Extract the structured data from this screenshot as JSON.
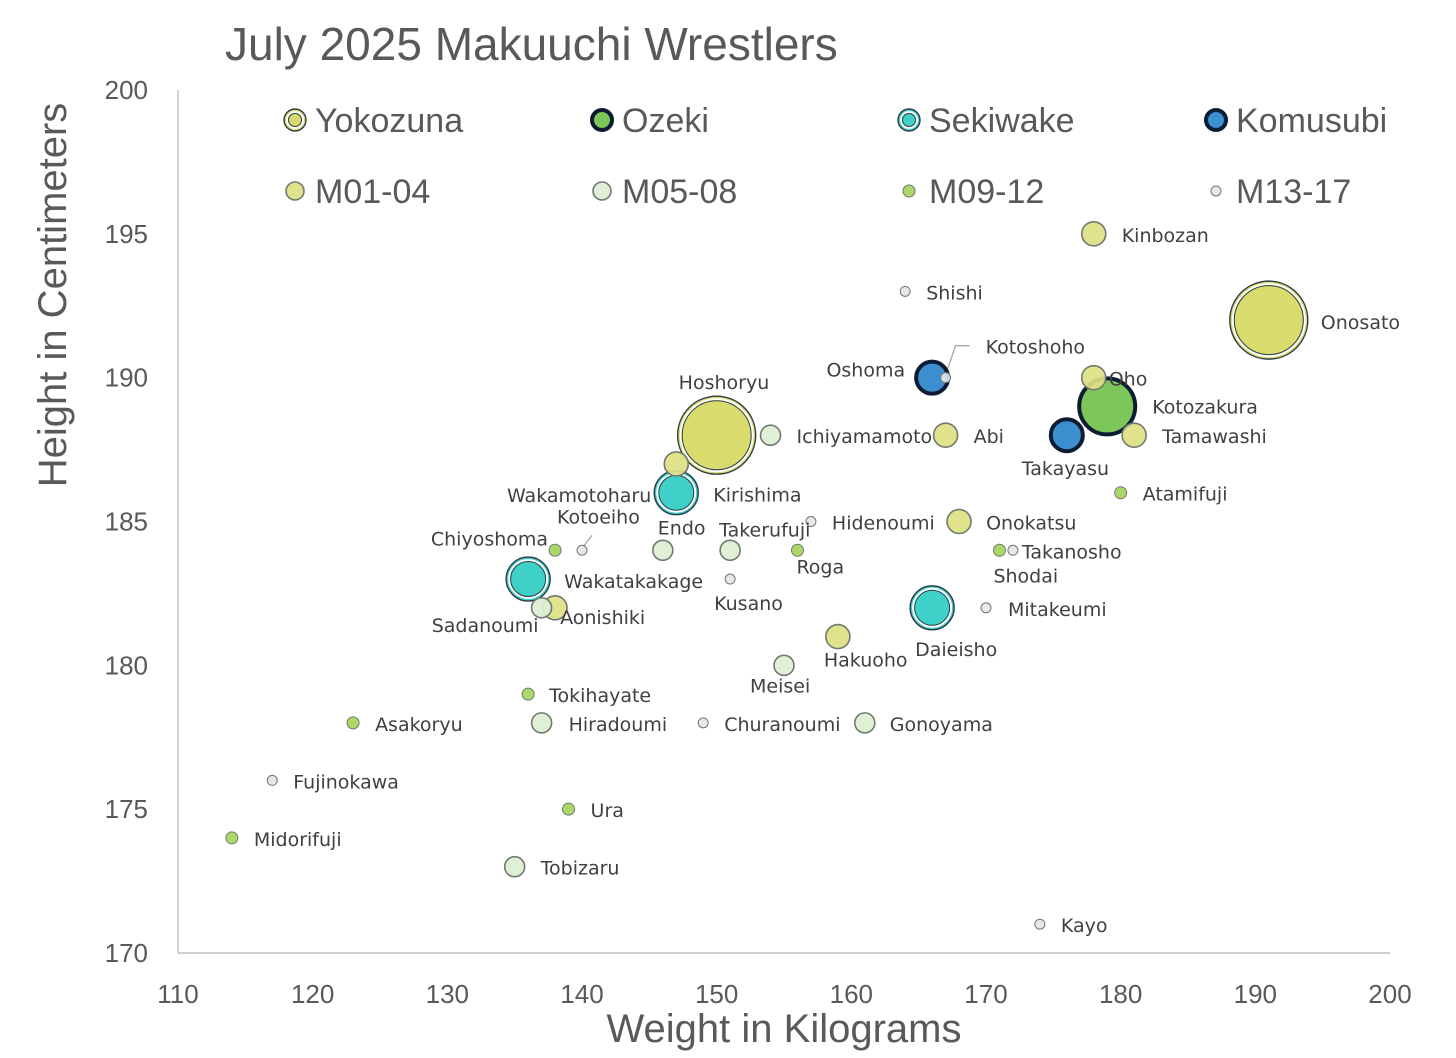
{
  "chart_data": {
    "type": "scatter",
    "title": "July 2025 Makuuchi Wrestlers",
    "xlabel": "Weight in Kilograms",
    "ylabel": "Height in Centimeters",
    "xlim": [
      110,
      200
    ],
    "ylim": [
      170,
      200
    ],
    "xticks": [
      110,
      120,
      130,
      140,
      150,
      160,
      170,
      180,
      190,
      200
    ],
    "yticks": [
      170,
      175,
      180,
      185,
      190,
      195,
      200
    ],
    "grid": false,
    "legend": "top",
    "categories": [
      {
        "key": "yokozuna",
        "name": "Yokozuna",
        "color": "#d9dc6c",
        "outline": "double"
      },
      {
        "key": "ozeki",
        "name": "Ozeki",
        "color": "#7cc65a",
        "outline": "thick"
      },
      {
        "key": "sekiwake",
        "name": "Sekiwake",
        "color": "#3fd0c8",
        "outline": "double"
      },
      {
        "key": "komusubi",
        "name": "Komusubi",
        "color": "#3b8fcf",
        "outline": "thick"
      },
      {
        "key": "m01_04",
        "name": "M01-04",
        "color": "#dedf82",
        "outline": "thin"
      },
      {
        "key": "m05_08",
        "name": "M05-08",
        "color": "#dcefd4",
        "outline": "thin"
      },
      {
        "key": "m09_12",
        "name": "M09-12",
        "color": "#a6d45a",
        "outline": "thin"
      },
      {
        "key": "m13_17",
        "name": "M13-17",
        "color": "#e4e4ea",
        "outline": "thin"
      }
    ],
    "points": [
      {
        "name": "Onosato",
        "x": 191,
        "y": 192,
        "category": "yokozuna"
      },
      {
        "name": "Hoshoryu",
        "x": 150,
        "y": 188,
        "category": "yokozuna"
      },
      {
        "name": "Kotozakura",
        "x": 179,
        "y": 189,
        "category": "ozeki"
      },
      {
        "name": "Kirishima",
        "x": 147,
        "y": 186,
        "category": "sekiwake"
      },
      {
        "name": "Wakatakakage",
        "x": 136,
        "y": 183,
        "category": "sekiwake"
      },
      {
        "name": "Daieisho",
        "x": 166,
        "y": 182,
        "category": "sekiwake"
      },
      {
        "name": "Oshoma",
        "x": 166,
        "y": 190,
        "category": "komusubi"
      },
      {
        "name": "Takayasu",
        "x": 176,
        "y": 188,
        "category": "komusubi"
      },
      {
        "name": "Kinbozan",
        "x": 178,
        "y": 195,
        "category": "m01_04"
      },
      {
        "name": "Oho",
        "x": 178,
        "y": 190,
        "category": "m01_04"
      },
      {
        "name": "Tamawashi",
        "x": 181,
        "y": 188,
        "category": "m01_04"
      },
      {
        "name": "Abi",
        "x": 167,
        "y": 188,
        "category": "m01_04"
      },
      {
        "name": "Wakamotoharu",
        "x": 147,
        "y": 187,
        "category": "m01_04"
      },
      {
        "name": "Onokatsu",
        "x": 168,
        "y": 185,
        "category": "m01_04"
      },
      {
        "name": "Aonishiki",
        "x": 138,
        "y": 182,
        "category": "m01_04"
      },
      {
        "name": "Hakuoho",
        "x": 159,
        "y": 181,
        "category": "m01_04"
      },
      {
        "name": "Ichiyamamoto",
        "x": 154,
        "y": 188,
        "category": "m05_08"
      },
      {
        "name": "Endo",
        "x": 146,
        "y": 184,
        "category": "m05_08"
      },
      {
        "name": "Takerufuji",
        "x": 151,
        "y": 184,
        "category": "m05_08"
      },
      {
        "name": "Sadanoumi",
        "x": 137,
        "y": 182,
        "category": "m05_08"
      },
      {
        "name": "Meisei",
        "x": 155,
        "y": 180,
        "category": "m05_08"
      },
      {
        "name": "Hiradoumi",
        "x": 137,
        "y": 178,
        "category": "m05_08"
      },
      {
        "name": "Gonoyama",
        "x": 161,
        "y": 178,
        "category": "m05_08"
      },
      {
        "name": "Tobizaru",
        "x": 135,
        "y": 173,
        "category": "m05_08"
      },
      {
        "name": "Atamifuji",
        "x": 180,
        "y": 186,
        "category": "m09_12"
      },
      {
        "name": "Chiyoshoma",
        "x": 138,
        "y": 184,
        "category": "m09_12"
      },
      {
        "name": "Roga",
        "x": 156,
        "y": 184,
        "category": "m09_12"
      },
      {
        "name": "Shodai",
        "x": 171,
        "y": 184,
        "category": "m09_12"
      },
      {
        "name": "Tokihayate",
        "x": 136,
        "y": 179,
        "category": "m09_12"
      },
      {
        "name": "Asakoryu",
        "x": 123,
        "y": 178,
        "category": "m09_12"
      },
      {
        "name": "Ura",
        "x": 139,
        "y": 175,
        "category": "m09_12"
      },
      {
        "name": "Midorifuji",
        "x": 114,
        "y": 174,
        "category": "m09_12"
      },
      {
        "name": "Shishi",
        "x": 164,
        "y": 193,
        "category": "m13_17"
      },
      {
        "name": "Kotoshoho",
        "x": 167,
        "y": 190,
        "category": "m13_17"
      },
      {
        "name": "Hidenoumi",
        "x": 157,
        "y": 185,
        "category": "m13_17"
      },
      {
        "name": "Kotoeiho",
        "x": 140,
        "y": 184,
        "category": "m13_17"
      },
      {
        "name": "Takanosho",
        "x": 172,
        "y": 184,
        "category": "m13_17"
      },
      {
        "name": "Kusano",
        "x": 151,
        "y": 183,
        "category": "m13_17"
      },
      {
        "name": "Mitakeumi",
        "x": 170,
        "y": 182,
        "category": "m13_17"
      },
      {
        "name": "Churanoumi",
        "x": 149,
        "y": 178,
        "category": "m13_17"
      },
      {
        "name": "Fujinokawa",
        "x": 117,
        "y": 176,
        "category": "m13_17"
      },
      {
        "name": "Kayo",
        "x": 174,
        "y": 171,
        "category": "m13_17"
      }
    ]
  }
}
